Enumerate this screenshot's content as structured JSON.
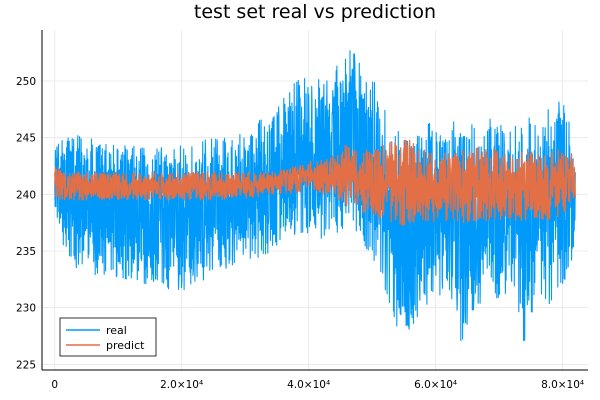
{
  "chart_data": {
    "type": "line",
    "title": "test set real vs prediction",
    "xlabel": "",
    "ylabel": "",
    "xlim": [
      -2000,
      84000
    ],
    "ylim": [
      224.5,
      254.5
    ],
    "grid": true,
    "legend_position": "bottom-left",
    "x_ticks": [
      {
        "value": 0,
        "label": "0"
      },
      {
        "value": 20000,
        "label": "2.0×10⁴"
      },
      {
        "value": 40000,
        "label": "4.0×10⁴"
      },
      {
        "value": 60000,
        "label": "6.0×10⁴"
      },
      {
        "value": 80000,
        "label": "8.0×10⁴"
      }
    ],
    "y_ticks": [
      {
        "value": 225,
        "label": "225"
      },
      {
        "value": 230,
        "label": "230"
      },
      {
        "value": 235,
        "label": "235"
      },
      {
        "value": 240,
        "label": "240"
      },
      {
        "value": 245,
        "label": "245"
      },
      {
        "value": 250,
        "label": "250"
      }
    ],
    "series": [
      {
        "name": "real",
        "color": "#009AFA",
        "envelope": {
          "x": [
            0,
            2000,
            5000,
            10000,
            15000,
            20000,
            25000,
            30000,
            33000,
            36000,
            40000,
            43000,
            46000,
            48000,
            50000,
            52000,
            54000,
            56000,
            58000,
            60000,
            62000,
            64000,
            66000,
            68000,
            70000,
            72000,
            74000,
            76000,
            78000,
            80000,
            82000
          ],
          "high": [
            244,
            245.5,
            245,
            244.5,
            244,
            244.5,
            245,
            245.5,
            247,
            249,
            251,
            250,
            253,
            252,
            250.5,
            248,
            246,
            245,
            246,
            246.5,
            246,
            248,
            246,
            247,
            246.5,
            246,
            247,
            246.5,
            248,
            249,
            244
          ],
          "low": [
            238,
            234,
            233,
            232.5,
            232,
            231,
            233,
            234,
            234.5,
            236,
            236,
            236,
            236.5,
            236,
            234,
            230.5,
            227,
            228,
            229.5,
            230.5,
            232,
            226.5,
            229,
            231,
            230.5,
            232,
            226,
            231,
            230,
            232,
            234
          ]
        }
      },
      {
        "name": "predict",
        "color": "#E26F46",
        "envelope": {
          "x": [
            0,
            2000,
            10000,
            20000,
            30000,
            34000,
            38000,
            40000,
            42000,
            44000,
            46000,
            48000,
            50000,
            52000,
            54000,
            56000,
            58000,
            60000,
            64000,
            68000,
            72000,
            76000,
            80000,
            82000
          ],
          "high": [
            242.5,
            242,
            242,
            242,
            242,
            242,
            242.5,
            243,
            243,
            243.5,
            244.5,
            244,
            244,
            244.5,
            245,
            245.5,
            244,
            243.5,
            244,
            244.5,
            243.5,
            244,
            244,
            243.5
          ],
          "low": [
            239.5,
            239.5,
            239.5,
            239.5,
            239.5,
            240,
            240,
            240.5,
            240,
            239.5,
            239,
            238.5,
            238,
            237.5,
            237,
            237.5,
            237.5,
            237.5,
            237.5,
            237.5,
            237.5,
            237.5,
            238,
            239
          ]
        }
      }
    ]
  }
}
